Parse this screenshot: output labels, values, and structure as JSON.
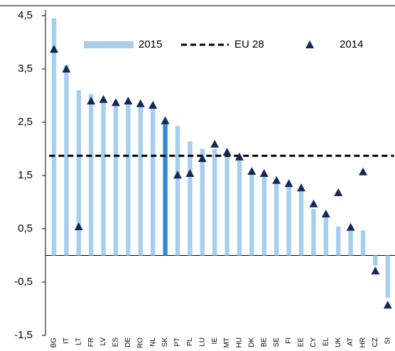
{
  "chart_data": {
    "type": "bar",
    "categories": [
      "BG",
      "IT",
      "LT",
      "FR",
      "LV",
      "ES",
      "DE",
      "RO",
      "NL",
      "SK",
      "PT",
      "PL",
      "LU",
      "IE",
      "MT",
      "HU",
      "DK",
      "BE",
      "SE",
      "FI",
      "EE",
      "CY",
      "EL",
      "UK",
      "AT",
      "HR",
      "CZ",
      "SI"
    ],
    "series": [
      {
        "name": "2015",
        "type": "bar",
        "color": "#a6cfee",
        "highlight_category": "SK",
        "highlight_color": "#2e8bcf",
        "values": [
          4.45,
          3.57,
          3.1,
          3.03,
          2.94,
          2.9,
          2.9,
          2.86,
          2.8,
          2.51,
          2.43,
          2.14,
          2.0,
          2.0,
          1.94,
          1.87,
          1.58,
          1.54,
          1.41,
          1.34,
          1.21,
          0.87,
          0.74,
          0.54,
          0.47,
          0.47,
          -0.19,
          -0.79
        ]
      },
      {
        "name": "2014",
        "type": "scatter",
        "marker": "triangle",
        "color": "#14285a",
        "values": [
          3.87,
          3.5,
          0.54,
          2.9,
          2.93,
          2.87,
          2.9,
          2.85,
          2.82,
          2.53,
          1.51,
          1.54,
          1.82,
          2.09,
          1.94,
          1.85,
          1.58,
          1.54,
          1.41,
          1.35,
          1.27,
          0.97,
          0.78,
          1.18,
          0.53,
          1.57,
          -0.29,
          -0.93
        ]
      }
    ],
    "reference_lines": [
      {
        "name": "EU 28",
        "value": 1.87,
        "color": "#000000",
        "style": "dashed"
      }
    ],
    "ylim": [
      -1.5,
      4.5
    ],
    "yticks": [
      {
        "value": -1.5,
        "label": "-1,5"
      },
      {
        "value": -0.5,
        "label": "-0,5"
      },
      {
        "value": 0.5,
        "label": "0,5"
      },
      {
        "value": 1.5,
        "label": "1,5"
      },
      {
        "value": 2.5,
        "label": "2,5"
      },
      {
        "value": 3.5,
        "label": "3,5"
      },
      {
        "value": 4.5,
        "label": "4,5"
      }
    ],
    "grid": false
  }
}
